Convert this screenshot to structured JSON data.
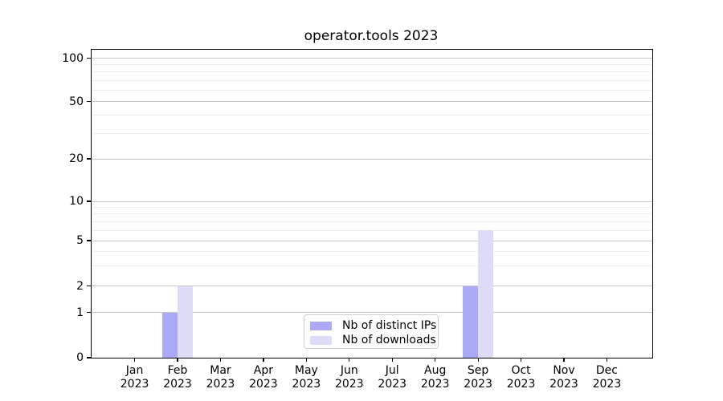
{
  "title": "operator.tools 2023",
  "chart_data": {
    "type": "bar",
    "title": "operator.tools 2023",
    "scale": "symlog",
    "ylim": [
      0,
      115
    ],
    "grid": "both (major + minor horizontal gridlines)",
    "legend_position": "lower center (inside axes)",
    "y_ticks": [
      0,
      1,
      2,
      5,
      10,
      20,
      50,
      100
    ],
    "minor_gridlines": [
      3,
      4,
      6,
      7,
      8,
      9,
      30,
      40,
      60,
      70,
      80,
      90
    ],
    "categories": [
      {
        "month": "Jan",
        "year": "2023"
      },
      {
        "month": "Feb",
        "year": "2023"
      },
      {
        "month": "Mar",
        "year": "2023"
      },
      {
        "month": "Apr",
        "year": "2023"
      },
      {
        "month": "May",
        "year": "2023"
      },
      {
        "month": "Jun",
        "year": "2023"
      },
      {
        "month": "Jul",
        "year": "2023"
      },
      {
        "month": "Aug",
        "year": "2023"
      },
      {
        "month": "Sep",
        "year": "2023"
      },
      {
        "month": "Oct",
        "year": "2023"
      },
      {
        "month": "Nov",
        "year": "2023"
      },
      {
        "month": "Dec",
        "year": "2023"
      }
    ],
    "series": [
      {
        "name": "Nb of distinct IPs",
        "color": "#a9a9f6",
        "values": [
          0,
          1,
          0,
          0,
          0,
          0,
          0,
          0,
          2,
          0,
          0,
          0
        ]
      },
      {
        "name": "Nb of downloads",
        "color": "#dcdcf6",
        "values": [
          0,
          2,
          0,
          0,
          0,
          0,
          0,
          0,
          6,
          0,
          0,
          0
        ]
      }
    ],
    "colors": {
      "spine": "#000000",
      "grid_major": "#c6c6c6",
      "grid_minor": "#ededed",
      "text": "#000000",
      "legend_border": "#cccccc"
    }
  }
}
